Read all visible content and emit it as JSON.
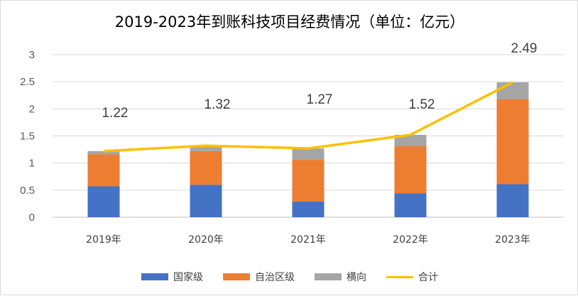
{
  "chart_data": {
    "type": "bar",
    "stacked": true,
    "title": "2019-2023年到账科技项目经费情况（单位：亿元）",
    "categories": [
      "2019年",
      "2020年",
      "2021年",
      "2022年",
      "2023年"
    ],
    "series": [
      {
        "name": "国家级",
        "values": [
          0.57,
          0.6,
          0.29,
          0.44,
          0.61
        ],
        "color": "#4472C4"
      },
      {
        "name": "自治区级",
        "values": [
          0.59,
          0.62,
          0.77,
          0.87,
          1.57
        ],
        "color": "#ED7D31"
      },
      {
        "name": "横向",
        "values": [
          0.06,
          0.1,
          0.21,
          0.21,
          0.31
        ],
        "color": "#A5A5A5"
      }
    ],
    "line": {
      "name": "合计",
      "values": [
        1.22,
        1.32,
        1.27,
        1.52,
        2.49
      ],
      "color": "#FFC000"
    },
    "total_labels": [
      "1.22",
      "1.32",
      "1.27",
      "1.52",
      "2.49"
    ],
    "y_ticks": [
      "0",
      "0.5",
      "1",
      "1.5",
      "2",
      "2.5",
      "3"
    ],
    "ylim": [
      0,
      3
    ],
    "grid": true,
    "legend_position": "bottom"
  }
}
